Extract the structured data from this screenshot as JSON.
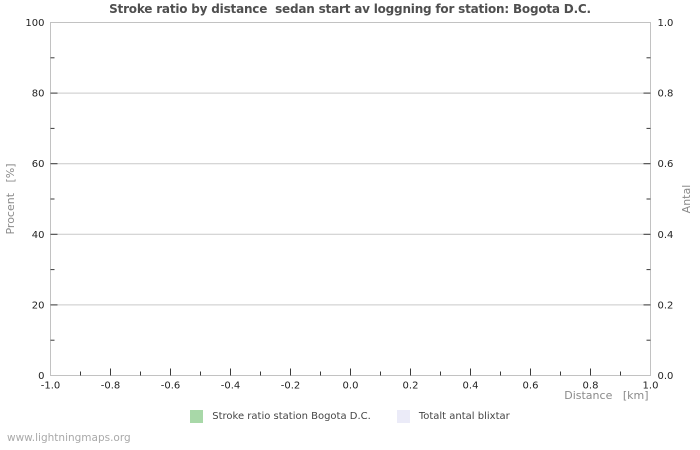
{
  "chart_data": {
    "type": "line",
    "title": "Stroke ratio by distance  sedan start av loggning for station: Bogota D.C.",
    "xlabel": "Distance   [km]",
    "ylabel_left": "Procent   [%]",
    "ylabel_right": "Antal",
    "xlim": [
      -1.0,
      1.0
    ],
    "ylim_left": [
      0,
      100
    ],
    "ylim_right": [
      0.0,
      1.0
    ],
    "x_major_ticks": [
      -1.0,
      -0.8,
      -0.6,
      -0.4,
      -0.2,
      0.0,
      0.2,
      0.4,
      0.6,
      0.8,
      1.0
    ],
    "x_tick_labels": [
      "-1.0",
      "-0.8",
      "-0.6",
      "-0.4",
      "-0.2",
      "0.0",
      "0.2",
      "0.4",
      "0.6",
      "0.8",
      "1.0"
    ],
    "x_minor_ticks": [
      -0.9,
      -0.7,
      -0.5,
      -0.3,
      -0.1,
      0.1,
      0.3,
      0.5,
      0.7,
      0.9
    ],
    "y_left_major_ticks": [
      0,
      20,
      40,
      60,
      80,
      100
    ],
    "y_left_tick_labels": [
      "0",
      "20",
      "40",
      "60",
      "80",
      "100"
    ],
    "y_left_minor_ticks": [
      10,
      30,
      50,
      70,
      90
    ],
    "y_right_major_ticks": [
      0.0,
      0.2,
      0.4,
      0.6,
      0.8,
      1.0
    ],
    "y_right_tick_labels": [
      "0.0",
      "0.2",
      "0.4",
      "0.6",
      "0.8",
      "1.0"
    ],
    "y_right_minor_ticks": [
      0.1,
      0.3,
      0.5,
      0.7,
      0.9
    ],
    "grid": "horizontal-major-only",
    "legend_position": "bottom-center",
    "series": [
      {
        "name": "Stroke ratio station Bogota D.C.",
        "color": "#a8d8a8",
        "x": [],
        "values": []
      },
      {
        "name": "Totalt antal blixtar",
        "color": "#ebebf8",
        "x": [],
        "values": []
      }
    ]
  },
  "legend": {
    "items": [
      {
        "label": "Stroke ratio station Bogota D.C.",
        "color": "#a8d8a8"
      },
      {
        "label": "Totalt antal blixtar",
        "color": "#ebebf8"
      }
    ]
  },
  "footer": {
    "watermark": "www.lightningmaps.org"
  },
  "colors": {
    "title": "#4f4f4f",
    "tick_label": "#232323",
    "axis_title": "#8a8a8a",
    "grid": "#c9c9c9",
    "border": "#c2c2c2",
    "tick": "#3a3a3a",
    "background": "#ffffff"
  }
}
